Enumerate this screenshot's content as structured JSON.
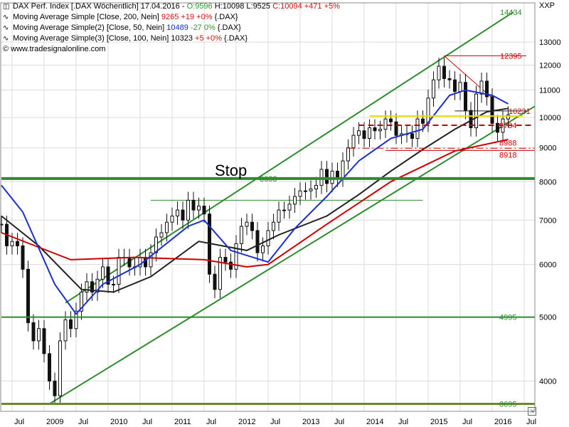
{
  "legend": {
    "main": {
      "name": "DAX Perf. Index [.DAX  Wöchentlich] 17.04.2016 - ",
      "o": "O:9596",
      "h": "H:10098",
      "l": "L:9525",
      "c": "C:10094 +471 +5%"
    },
    "ma200": {
      "name": "Moving Average Simple [Close, 200, Nein]",
      "val": "9265",
      "chg": "+19 +0%",
      "sym": "{.DAX}"
    },
    "ma50": {
      "name": "Moving Average Simple(2) [Close, 50, Nein]",
      "val": "10489",
      "chg": "-27 0%",
      "sym": "{.DAX}"
    },
    "ma100": {
      "name": "Moving Average Simple(3) [Close, 100, Nein]",
      "val": "10323",
      "chg": "+5 +0%",
      "sym": "{.DAX}"
    },
    "watermark": "© www.tradesignalonline.com"
  },
  "axis_unit": "XXP",
  "colors": {
    "green": "#2e8b2e",
    "red": "#cc0000",
    "blue": "#1a2fd0",
    "black": "#222222",
    "yellow": "#f2d600",
    "grid": "#dcdcdc",
    "candle": "#111111"
  },
  "chart_data": {
    "type": "line",
    "title": "DAX Perf. Index [.DAX  Wöchentlich]",
    "y_scale": "log",
    "ylim": [
      3600,
      14900
    ],
    "y_ticks": [
      4000,
      5000,
      6000,
      7000,
      8000,
      9000,
      10000,
      11000,
      12000,
      13000
    ],
    "x_ticks": [
      "Jul",
      "2009",
      "Jul",
      "2010",
      "Jul",
      "2011",
      "Jul",
      "2012",
      "Jul",
      "2013",
      "Jul",
      "2014",
      "Jul",
      "2015",
      "Jul",
      "2016",
      "Jul"
    ],
    "x_range": [
      "2008-05",
      "2016-09"
    ],
    "price_close": [
      [
        "2008-05",
        6900
      ],
      [
        "2008-06",
        6400
      ],
      [
        "2008-07",
        6500
      ],
      [
        "2008-08",
        6400
      ],
      [
        "2008-09",
        5900
      ],
      [
        "2008-10",
        4900
      ],
      [
        "2008-11",
        4600
      ],
      [
        "2008-12",
        4800
      ],
      [
        "2009-01",
        4400
      ],
      [
        "2009-02",
        4000
      ],
      [
        "2009-03",
        3800
      ],
      [
        "2009-04",
        4600
      ],
      [
        "2009-05",
        4950
      ],
      [
        "2009-06",
        4800
      ],
      [
        "2009-07",
        5100
      ],
      [
        "2009-08",
        5450
      ],
      [
        "2009-09",
        5650
      ],
      [
        "2009-10",
        5450
      ],
      [
        "2009-11",
        5700
      ],
      [
        "2009-12",
        5950
      ],
      [
        "2010-01",
        5600
      ],
      [
        "2010-02",
        5600
      ],
      [
        "2010-03",
        6150
      ],
      [
        "2010-04",
        6150
      ],
      [
        "2010-05",
        5950
      ],
      [
        "2010-06",
        5950
      ],
      [
        "2010-07",
        6150
      ],
      [
        "2010-08",
        5950
      ],
      [
        "2010-09",
        6250
      ],
      [
        "2010-10",
        6600
      ],
      [
        "2010-11",
        6700
      ],
      [
        "2010-12",
        6950
      ],
      [
        "2011-01",
        7100
      ],
      [
        "2011-02",
        7250
      ],
      [
        "2011-03",
        7000
      ],
      [
        "2011-04",
        7500
      ],
      [
        "2011-05",
        7250
      ],
      [
        "2011-06",
        7350
      ],
      [
        "2011-07",
        7150
      ],
      [
        "2011-08",
        5800
      ],
      [
        "2011-09",
        5500
      ],
      [
        "2011-10",
        6150
      ],
      [
        "2011-11",
        6050
      ],
      [
        "2011-12",
        5900
      ],
      [
        "2012-01",
        6450
      ],
      [
        "2012-02",
        6850
      ],
      [
        "2012-03",
        6950
      ],
      [
        "2012-04",
        6750
      ],
      [
        "2012-05",
        6250
      ],
      [
        "2012-06",
        6400
      ],
      [
        "2012-07",
        6750
      ],
      [
        "2012-08",
        6950
      ],
      [
        "2012-09",
        7250
      ],
      [
        "2012-10",
        7250
      ],
      [
        "2012-11",
        7400
      ],
      [
        "2012-12",
        7600
      ],
      [
        "2013-01",
        7750
      ],
      [
        "2013-02",
        7750
      ],
      [
        "2013-03",
        7800
      ],
      [
        "2013-04",
        7900
      ],
      [
        "2013-05",
        8350
      ],
      [
        "2013-06",
        7950
      ],
      [
        "2013-07",
        8300
      ],
      [
        "2013-08",
        8100
      ],
      [
        "2013-09",
        8600
      ],
      [
        "2013-10",
        9000
      ],
      [
        "2013-11",
        9400
      ],
      [
        "2013-12",
        9550
      ],
      [
        "2014-01",
        9300
      ],
      [
        "2014-02",
        9650
      ],
      [
        "2014-03",
        9550
      ],
      [
        "2014-04",
        9600
      ],
      [
        "2014-05",
        9950
      ],
      [
        "2014-06",
        9850
      ],
      [
        "2014-07",
        9400
      ],
      [
        "2014-08",
        9450
      ],
      [
        "2014-09",
        9450
      ],
      [
        "2014-10",
        9300
      ],
      [
        "2014-11",
        9950
      ],
      [
        "2014-12",
        9800
      ],
      [
        "2015-01",
        10700
      ],
      [
        "2015-02",
        11400
      ],
      [
        "2015-03",
        11950
      ],
      [
        "2015-04",
        11450
      ],
      [
        "2015-05",
        11400
      ],
      [
        "2015-06",
        10950
      ],
      [
        "2015-07",
        11300
      ],
      [
        "2015-08",
        10250
      ],
      [
        "2015-09",
        9650
      ],
      [
        "2015-10",
        10850
      ],
      [
        "2015-11",
        11350
      ],
      [
        "2015-12",
        10750
      ],
      [
        "2016-01",
        9800
      ],
      [
        "2016-02",
        9500
      ],
      [
        "2016-03",
        9950
      ],
      [
        "2016-04",
        10094
      ]
    ],
    "sma200": [
      [
        "2008-05",
        6700
      ],
      [
        "2009-06",
        6100
      ],
      [
        "2010-06",
        6150
      ],
      [
        "2011-07",
        6100
      ],
      [
        "2012-03",
        5950
      ],
      [
        "2012-07",
        6000
      ],
      [
        "2013-06",
        6900
      ],
      [
        "2014-06",
        8000
      ],
      [
        "2015-06",
        8900
      ],
      [
        "2016-04",
        9265
      ]
    ],
    "sma50": [
      [
        "2008-05",
        7900
      ],
      [
        "2008-09",
        7200
      ],
      [
        "2009-03",
        5600
      ],
      [
        "2009-07",
        5050
      ],
      [
        "2009-12",
        5600
      ],
      [
        "2010-07",
        6000
      ],
      [
        "2011-04",
        6850
      ],
      [
        "2011-07",
        7000
      ],
      [
        "2011-12",
        6300
      ],
      [
        "2012-07",
        6050
      ],
      [
        "2012-12",
        6800
      ],
      [
        "2013-06",
        7600
      ],
      [
        "2013-12",
        8600
      ],
      [
        "2014-06",
        9300
      ],
      [
        "2014-12",
        9600
      ],
      [
        "2015-05",
        10800
      ],
      [
        "2015-08",
        11000
      ],
      [
        "2016-01",
        10800
      ],
      [
        "2016-04",
        10489
      ]
    ],
    "sma100": [
      [
        "2008-05",
        7100
      ],
      [
        "2008-12",
        6400
      ],
      [
        "2009-08",
        5500
      ],
      [
        "2010-02",
        5450
      ],
      [
        "2010-09",
        5750
      ],
      [
        "2011-06",
        6500
      ],
      [
        "2012-03",
        6300
      ],
      [
        "2012-09",
        6650
      ],
      [
        "2013-06",
        7100
      ],
      [
        "2013-12",
        7650
      ],
      [
        "2014-06",
        8300
      ],
      [
        "2014-12",
        8950
      ],
      [
        "2015-06",
        9600
      ],
      [
        "2015-12",
        10200
      ],
      [
        "2016-04",
        10323
      ]
    ],
    "horizontal_levels": [
      {
        "value": 8088,
        "label": "8088"
      },
      {
        "value": 4995,
        "label": "4995"
      },
      {
        "value": 3695,
        "label": "3695"
      },
      {
        "value": 12395,
        "label": "12395"
      },
      {
        "value": 10231,
        "label": "10231"
      },
      {
        "value": 9734,
        "label": "9734"
      },
      {
        "value": 8988,
        "label": "8988"
      },
      {
        "value": 8918,
        "label": "8918"
      },
      {
        "value": 14434,
        "label": "14434"
      }
    ],
    "annotation": "Stop"
  }
}
